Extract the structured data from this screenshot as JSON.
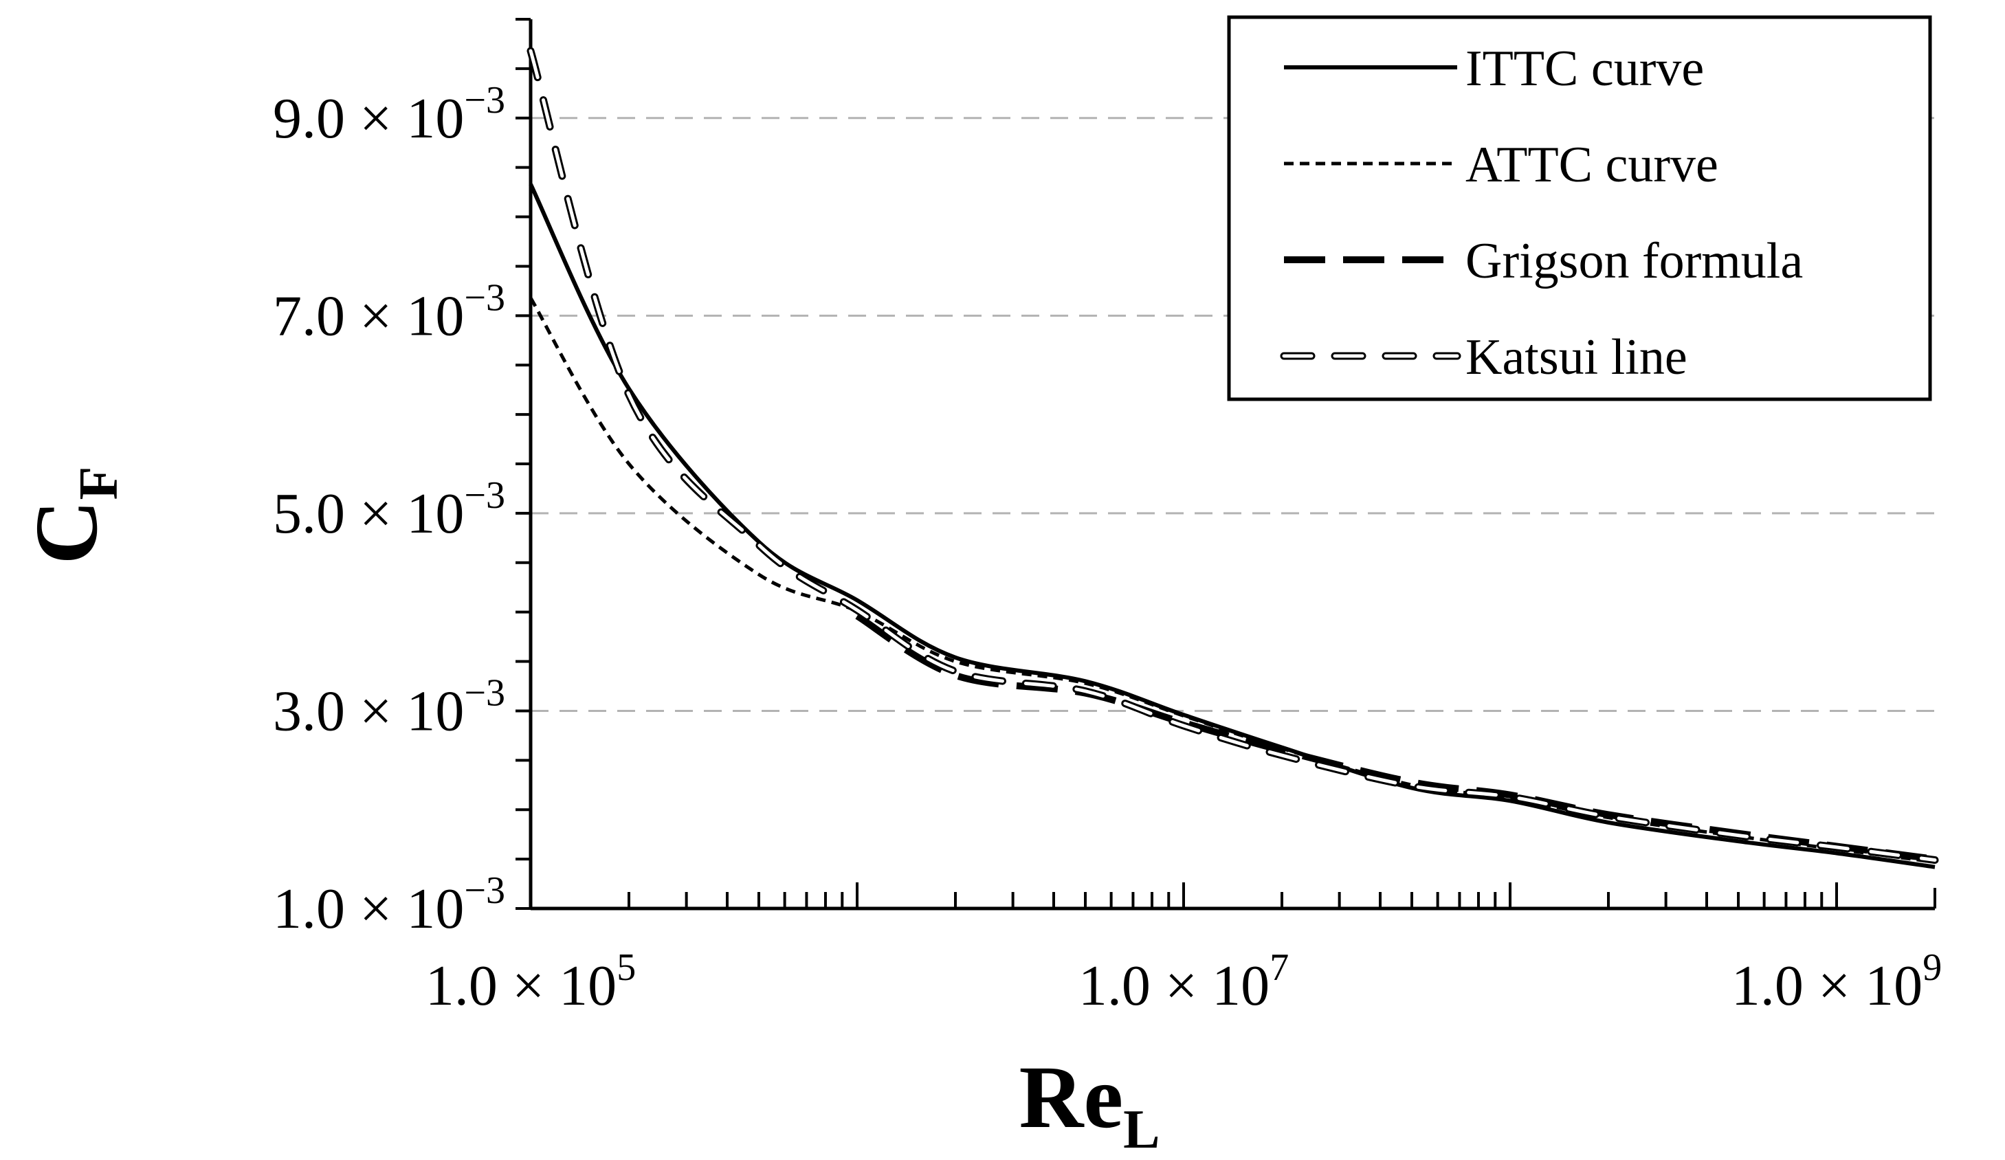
{
  "chart_data": {
    "type": "line",
    "xscale": "log",
    "xlim": [
      100000,
      2000000000
    ],
    "ylim": [
      0.001,
      0.01
    ],
    "x_ticks": [
      {
        "value": 100000,
        "mantissa": "1.0",
        "exponent": "5"
      },
      {
        "value": 10000000,
        "mantissa": "1.0",
        "exponent": "7"
      },
      {
        "value": 1000000000,
        "mantissa": "1.0",
        "exponent": "9"
      }
    ],
    "y_ticks": [
      {
        "value": 0.001,
        "mantissa": "1.0",
        "exponent": "−3"
      },
      {
        "value": 0.003,
        "mantissa": "3.0",
        "exponent": "−3"
      },
      {
        "value": 0.005,
        "mantissa": "5.0",
        "exponent": "−3"
      },
      {
        "value": 0.007,
        "mantissa": "7.0",
        "exponent": "−3"
      },
      {
        "value": 0.009,
        "mantissa": "9.0",
        "exponent": "−3"
      }
    ],
    "times_symbol": "×",
    "tick_base": "10",
    "xlabel": {
      "main": "Re",
      "sub": "L"
    },
    "ylabel": {
      "main": "C",
      "sub": "F"
    },
    "grid": {
      "y_major": true,
      "style": "dashed",
      "color": "#b3b3b3"
    },
    "legend_position": "top-right",
    "x": [
      100000,
      200000,
      500000,
      1000000,
      2000000,
      5000000,
      10000000,
      20000000,
      50000000,
      100000000,
      200000000,
      500000000,
      1000000000,
      2000000000
    ],
    "series": [
      {
        "name": "ITTC curve",
        "style": "solid",
        "color": "#000000",
        "values": [
          0.00833,
          0.00626,
          0.00471,
          0.00412,
          0.00354,
          0.0033,
          0.00296,
          0.00263,
          0.00222,
          0.00209,
          0.00187,
          0.00168,
          0.00156,
          0.00142
        ]
      },
      {
        "name": "ATTC curve",
        "style": "short-dash",
        "color": "#000000",
        "values": [
          0.00718,
          0.0055,
          0.00438,
          0.00401,
          0.0035,
          0.00328,
          0.00295,
          0.00262,
          0.00225,
          0.00212,
          0.00192,
          0.00173,
          0.0016,
          0.00147
        ]
      },
      {
        "name": "Grigson formula",
        "style": "long-dash",
        "color": "#000000",
        "values": [
          null,
          null,
          null,
          0.00396,
          0.00336,
          0.00318,
          0.00288,
          0.0026,
          0.00228,
          0.00215,
          0.00195,
          0.00176,
          0.00163,
          0.0015
        ]
      },
      {
        "name": "Katsui line",
        "style": "double-outline-dash",
        "color": "#000000",
        "values": [
          0.00968,
          0.0062,
          0.00468,
          0.00402,
          0.0034,
          0.0032,
          0.00285,
          0.00255,
          0.00224,
          0.00213,
          0.00193,
          0.00174,
          0.00162,
          0.00149
        ]
      }
    ]
  }
}
